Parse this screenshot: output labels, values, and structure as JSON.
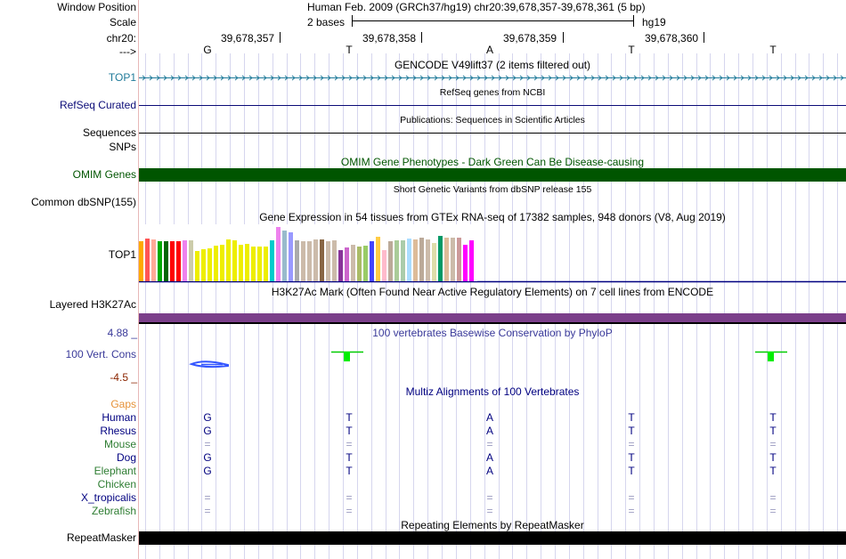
{
  "header": {
    "window_position_label": "Window Position",
    "window_position_value": "Human Feb. 2009 (GRCh37/hg19)   chr20:39,678,357-39,678,361 (5 bp)",
    "scale_label": "Scale",
    "scale_value": "2 bases",
    "scale_assembly": "hg19",
    "chrom_label": "chr20:",
    "strand_label": "--->",
    "coord_ticks": [
      "39,678,357",
      "39,678,358",
      "39,678,359",
      "39,678,360"
    ],
    "bases": [
      "G",
      "T",
      "A",
      "T",
      "T"
    ]
  },
  "tracks": {
    "gencode": {
      "title": "GENCODE V49lift37 (2 items filtered out)",
      "label": "TOP1"
    },
    "refseq": {
      "title": "RefSeq genes from NCBI",
      "label": "RefSeq Curated"
    },
    "publications": {
      "title": "Publications: Sequences in Scientific Articles",
      "label_line1": "Sequences",
      "label_line2": "SNPs"
    },
    "omim": {
      "title": "OMIM Gene Phenotypes - Dark Green Can Be Disease-causing",
      "label": "OMIM Genes",
      "color": "#005500"
    },
    "dbsnp": {
      "title": "Short Genetic Variants from dbSNP release 155",
      "label": "Common dbSNP(155)"
    },
    "gtex": {
      "title": "Gene Expression in 54 tissues from GTEx RNA-seq of 17382 samples, 948 donors (V8, Aug 2019)",
      "label": "TOP1",
      "tissue_colors": [
        "#FFAA00",
        "#FF5555",
        "#FFAA99",
        "#00AA00",
        "#006600",
        "#FF0000",
        "#FF0000",
        "#EE82EE",
        "#CCCCAA",
        "#EEEE00",
        "#EEEE00",
        "#EEEE00",
        "#EEEE00",
        "#EEEE00",
        "#EEEE00",
        "#EEEE00",
        "#EEEE00",
        "#EEEE00",
        "#EEEE00",
        "#EEEE00",
        "#EEEE00",
        "#00CCCC",
        "#EE82EE",
        "#99BBCC",
        "#9999FF",
        "#AAAAAA",
        "#CCBBAA",
        "#CCBBAA",
        "#CCBBAA",
        "#886644",
        "#CCBBAA",
        "#CCBBAA",
        "#883399",
        "#CC66CC",
        "#CCBBAA",
        "#AABB66",
        "#99CC66",
        "#4444FF",
        "#FFCC44",
        "#FFBBCC",
        "#BBAA99",
        "#AACC99",
        "#AACCAA",
        "#AADDFF",
        "#DDBB99",
        "#BBAA99",
        "#CCBBAA",
        "#DDDDAA",
        "#009966",
        "#DDBB99",
        "#CCBBAA",
        "#CC9999",
        "#FF00FF",
        "#FF00FF"
      ],
      "tissue_values": [
        92,
        97,
        95,
        91,
        92,
        92,
        91,
        93,
        94,
        70,
        73,
        75,
        82,
        84,
        95,
        93,
        84,
        85,
        80,
        79,
        80,
        94,
        123,
        115,
        111,
        94,
        92,
        92,
        95,
        96,
        91,
        93,
        71,
        77,
        83,
        80,
        81,
        91,
        101,
        71,
        92,
        94,
        94,
        97,
        96,
        99,
        95,
        88,
        103,
        100,
        99,
        99,
        84,
        93
      ]
    },
    "h3k27ac": {
      "title": "H3K27Ac Mark (Often Found Near Active Regulatory Elements) on 7 cell lines from ENCODE",
      "label": "Layered H3K27Ac",
      "color": "#7B3F8A"
    },
    "phylop": {
      "title": "100 vertebrates Basewise Conservation by PhyloP",
      "label": "100 Vert. Cons",
      "max": "4.88 _",
      "min": "-4.5 _"
    },
    "multiz": {
      "title": "Multiz Alignments of 100 Vertebrates",
      "species": [
        {
          "name": "Gaps",
          "color": "#E69138",
          "bases": [
            "",
            "",
            "",
            "",
            ""
          ]
        },
        {
          "name": "Human",
          "color": "#000080",
          "bases": [
            "G",
            "T",
            "A",
            "T",
            "T"
          ]
        },
        {
          "name": "Rhesus",
          "color": "#000080",
          "bases": [
            "G",
            "T",
            "A",
            "T",
            "T"
          ]
        },
        {
          "name": "Mouse",
          "color": "#2E7D32",
          "bases": [
            "=",
            "=",
            "=",
            "=",
            "="
          ]
        },
        {
          "name": "Dog",
          "color": "#000080",
          "bases": [
            "G",
            "T",
            "A",
            "T",
            "T"
          ]
        },
        {
          "name": "Elephant",
          "color": "#2E7D32",
          "bases": [
            "G",
            "T",
            "A",
            "T",
            "T"
          ]
        },
        {
          "name": "Chicken",
          "color": "#2E7D32",
          "bases": [
            "",
            "",
            "",
            "",
            ""
          ]
        },
        {
          "name": "X_tropicalis",
          "color": "#000080",
          "bases": [
            "=",
            "=",
            "=",
            "=",
            "="
          ]
        },
        {
          "name": "Zebrafish",
          "color": "#2E7D32",
          "bases": [
            "=",
            "=",
            "=",
            "=",
            "="
          ]
        }
      ]
    },
    "repeatmasker": {
      "title": "Repeating Elements by RepeatMasker",
      "label": "RepeatMasker"
    }
  }
}
